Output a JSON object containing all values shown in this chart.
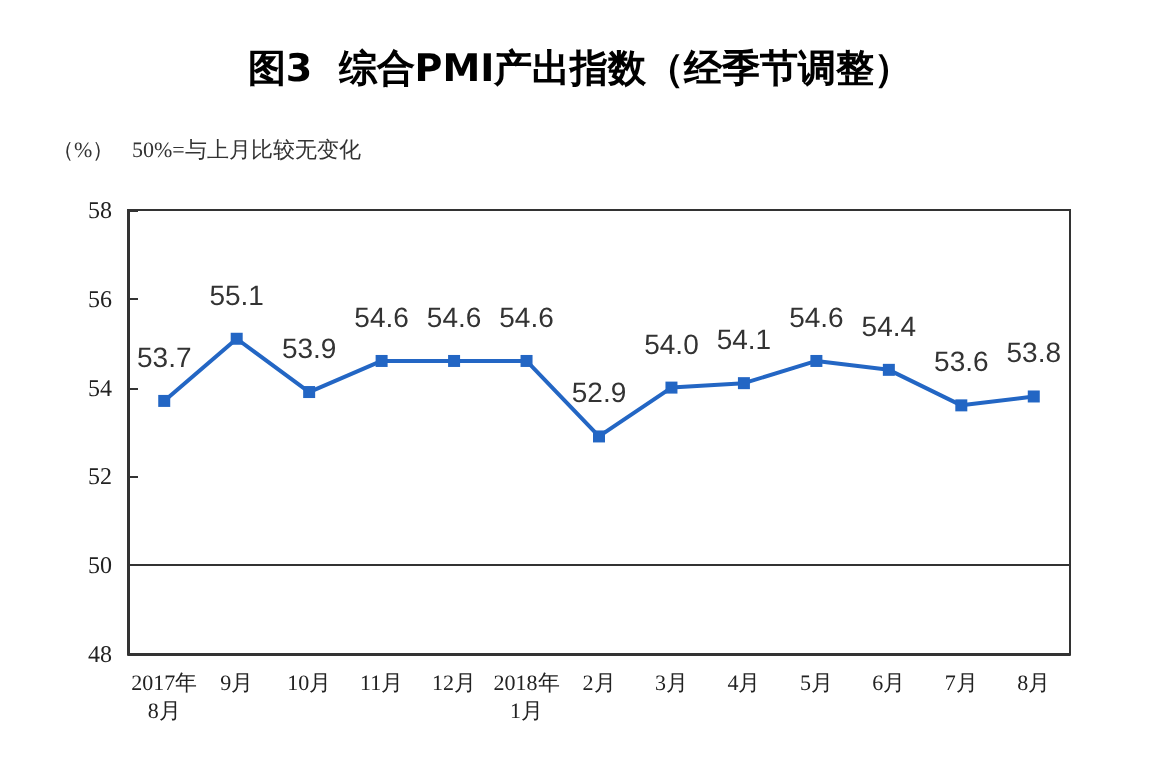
{
  "chart_data": {
    "type": "line",
    "title": "图3  综合PMI产出指数（经季节调整）",
    "ylabel": "（%）",
    "annotations": [
      "50%=与上月比较无变化"
    ],
    "categories": [
      "2017年\n8月",
      "9月",
      "10月",
      "11月",
      "12月",
      "2018年\n1月",
      "2月",
      "3月",
      "4月",
      "5月",
      "6月",
      "7月",
      "8月"
    ],
    "series": [
      {
        "color": "#2366c4",
        "values": [
          53.7,
          55.1,
          53.9,
          54.6,
          54.6,
          54.6,
          52.9,
          54.0,
          54.1,
          54.6,
          54.4,
          53.6,
          53.8
        ],
        "value_labels": [
          "53.7",
          "55.1",
          "53.9",
          "54.6",
          "54.6",
          "54.6",
          "52.9",
          "54.0",
          "54.1",
          "54.6",
          "54.4",
          "53.6",
          "53.8"
        ]
      }
    ],
    "ylim": [
      48,
      58
    ],
    "yticks": [
      48,
      50,
      52,
      54,
      56,
      58
    ],
    "grid": false,
    "marker": "square",
    "line_style": "solid",
    "ref_lines": [
      {
        "axis": "y",
        "value": 50,
        "color": "#333333",
        "line_style": "solid"
      }
    ]
  }
}
